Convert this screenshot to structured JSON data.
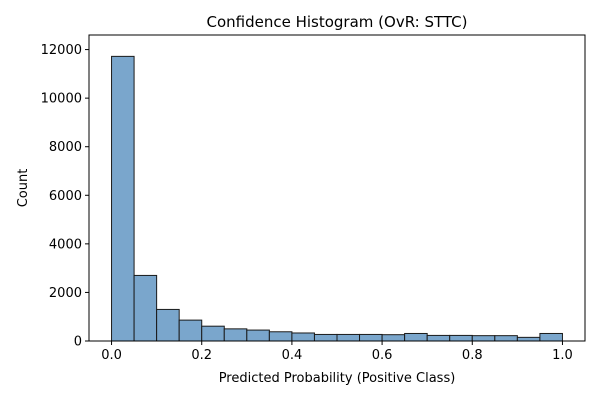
{
  "chart_data": {
    "type": "bar",
    "title": "Confidence Histogram (OvR: STTC)",
    "xlabel": "Predicted Probability (Positive Class)",
    "ylabel": "Count",
    "bin_edges": [
      0.0,
      0.05,
      0.1,
      0.15,
      0.2,
      0.25,
      0.3,
      0.35,
      0.4,
      0.45,
      0.5,
      0.55,
      0.6,
      0.65,
      0.7,
      0.75,
      0.8,
      0.85,
      0.9,
      0.95,
      1.0
    ],
    "values": [
      11720,
      2700,
      1300,
      860,
      610,
      500,
      450,
      380,
      330,
      270,
      270,
      270,
      260,
      310,
      230,
      230,
      220,
      220,
      150,
      310
    ],
    "xlim": [
      -0.05,
      1.05
    ],
    "ylim": [
      0,
      12600
    ],
    "xticks": [
      0.0,
      0.2,
      0.4,
      0.6,
      0.8,
      1.0
    ],
    "xtick_labels": [
      "0.0",
      "0.2",
      "0.4",
      "0.6",
      "0.8",
      "1.0"
    ],
    "yticks": [
      0,
      2000,
      4000,
      6000,
      8000,
      10000,
      12000
    ],
    "ytick_labels": [
      "0",
      "2000",
      "4000",
      "6000",
      "8000",
      "10000",
      "12000"
    ],
    "bar_color": "#7aa6cc",
    "edge_color": "#1a1a1a",
    "grid": false,
    "legend": "none"
  }
}
